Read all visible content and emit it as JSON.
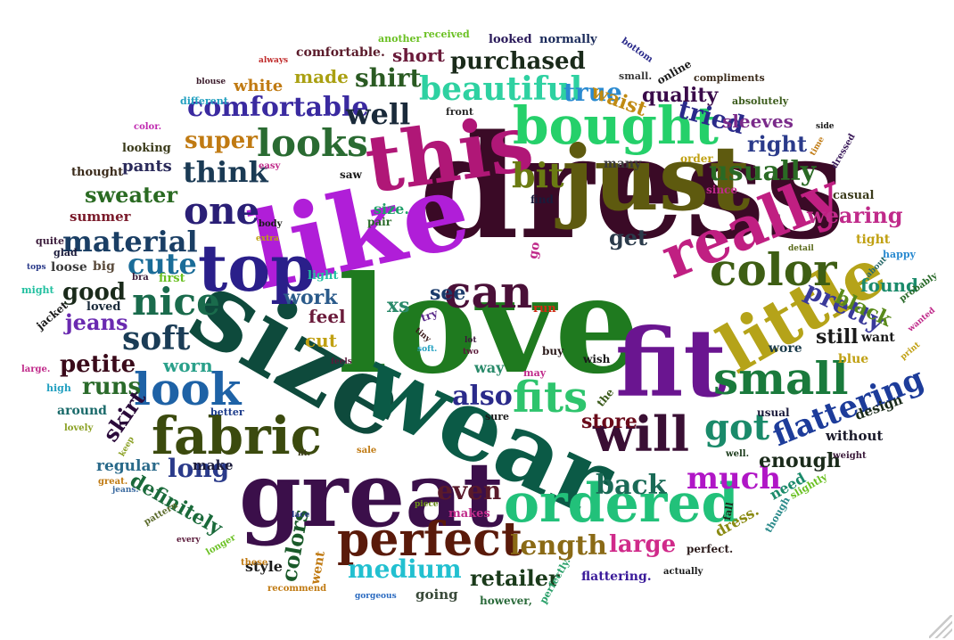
{
  "words": [
    {
      "text": "dress",
      "color": "#3a0a26",
      "rot": 0
    },
    {
      "text": "love",
      "color": "#1f7a1f",
      "rot": 0
    },
    {
      "text": "size",
      "color": "#0e4a3c",
      "rot": 30
    },
    {
      "text": "like",
      "color": "#b01ed8",
      "rot": -12
    },
    {
      "text": "wear",
      "color": "#0b5a46",
      "rot": 25
    },
    {
      "text": "great",
      "color": "#3b0f4a",
      "rot": 0
    },
    {
      "text": "just",
      "color": "#5e5a0f",
      "rot": 0
    },
    {
      "text": "fit",
      "color": "#6a1590",
      "rot": 0
    },
    {
      "text": "this",
      "color": "#b01777",
      "rot": -8
    },
    {
      "text": "top",
      "color": "#2a1f8a",
      "rot": 0
    },
    {
      "text": "little",
      "color": "#b5a319",
      "rot": -30
    },
    {
      "text": "really",
      "color": "#c01f82",
      "rot": -22
    },
    {
      "text": "ordered",
      "color": "#22c17a",
      "rot": 0
    },
    {
      "text": "bought",
      "color": "#25d06a",
      "rot": 0
    },
    {
      "text": "fabric",
      "color": "#3b4a0e",
      "rot": 0
    },
    {
      "text": "perfect",
      "color": "#5a1a0a",
      "rot": 0
    },
    {
      "text": "will",
      "color": "#3a0f34",
      "rot": 0
    },
    {
      "text": "color",
      "color": "#3e5e14",
      "rot": 0
    },
    {
      "text": "small",
      "color": "#1a7a3c",
      "rot": 0
    },
    {
      "text": "look",
      "color": "#1e62a6",
      "rot": 0
    },
    {
      "text": "fits",
      "color": "#2ec46d",
      "rot": 0
    },
    {
      "text": "can",
      "color": "#4a1038",
      "rot": 0
    },
    {
      "text": "nice",
      "color": "#1a6b4c",
      "rot": 0
    },
    {
      "text": "looks",
      "color": "#2a6b32",
      "rot": 0
    },
    {
      "text": "one",
      "color": "#2a1f76",
      "rot": 0
    },
    {
      "text": "bit",
      "color": "#6a7a12",
      "rot": 0
    },
    {
      "text": "got",
      "color": "#1a8a6a",
      "rot": 0
    },
    {
      "text": "beautiful",
      "color": "#2ed1a1",
      "rot": 0
    },
    {
      "text": "soft",
      "color": "#1a3c56",
      "rot": 0
    },
    {
      "text": "much",
      "color": "#b016c6",
      "rot": 0
    },
    {
      "text": "flattering",
      "color": "#1d3c9a",
      "rot": -22
    },
    {
      "text": "comfortable",
      "color": "#3a2aa0",
      "rot": 0
    },
    {
      "text": "material",
      "color": "#1a3e64",
      "rot": 0
    },
    {
      "text": "cute",
      "color": "#1a6c98",
      "rot": 0
    },
    {
      "text": "think",
      "color": "#1a3a54",
      "rot": 0
    },
    {
      "text": "well",
      "color": "#1a2a3a",
      "rot": 0
    },
    {
      "text": "usually",
      "color": "#2a6a24",
      "rot": 0
    },
    {
      "text": "length",
      "color": "#8a6a16",
      "rot": 0
    },
    {
      "text": "even",
      "color": "#5a1a2a",
      "rot": 0
    },
    {
      "text": "back",
      "color": "#1a6a56",
      "rot": 0
    },
    {
      "text": "also",
      "color": "#2a2a8a",
      "rot": 0
    },
    {
      "text": "pretty",
      "color": "#3a3a9a",
      "rot": 25
    },
    {
      "text": "purchased",
      "color": "#1a2a1a",
      "rot": 0
    },
    {
      "text": "shirt",
      "color": "#2a5a22",
      "rot": 0
    },
    {
      "text": "super",
      "color": "#c07a12",
      "rot": 0
    },
    {
      "text": "true",
      "color": "#2a8ad0",
      "rot": 0
    },
    {
      "text": "tried",
      "color": "#2a2a8a",
      "rot": 15
    },
    {
      "text": "good",
      "color": "#1a2a1a",
      "rot": 0
    },
    {
      "text": "jeans",
      "color": "#6a2ab0",
      "rot": 0
    },
    {
      "text": "petite",
      "color": "#3a0a1a",
      "rot": 0
    },
    {
      "text": "runs",
      "color": "#2a6a2a",
      "rot": 0
    },
    {
      "text": "sweater",
      "color": "#2a6a22",
      "rot": 0
    },
    {
      "text": "long",
      "color": "#2a3a8a",
      "rot": 0
    },
    {
      "text": "definitely",
      "color": "#1a6a3a",
      "rot": 30
    },
    {
      "text": "skirt",
      "color": "#2a0a3a",
      "rot": -55
    },
    {
      "text": "colors",
      "color": "#1a5a2a",
      "rot": -80
    },
    {
      "text": "medium",
      "color": "#22c0d0",
      "rot": 0
    },
    {
      "text": "retailer",
      "color": "#1a3a1a",
      "rot": 0
    },
    {
      "text": "large",
      "color": "#d02a8a",
      "rot": 0
    },
    {
      "text": "wearing",
      "color": "#c02a8a",
      "rot": 0
    },
    {
      "text": "black",
      "color": "#5a8a1a",
      "rot": 25
    },
    {
      "text": "still",
      "color": "#1a1a1a",
      "rot": 0
    },
    {
      "text": "get",
      "color": "#2a3a4a",
      "rot": 0
    },
    {
      "text": "right",
      "color": "#2a3a8a",
      "rot": 0
    },
    {
      "text": "quality",
      "color": "#3a0a4a",
      "rot": 0
    },
    {
      "text": "waist",
      "color": "#c08a12",
      "rot": 20
    },
    {
      "text": "sleeves",
      "color": "#7a2a8a",
      "rot": 0
    },
    {
      "text": "work",
      "color": "#2a5a8a",
      "rot": 0
    },
    {
      "text": "feel",
      "color": "#6a1a3a",
      "rot": 0
    },
    {
      "text": "cut",
      "color": "#c0a012",
      "rot": 0
    },
    {
      "text": "worn",
      "color": "#2aa08a",
      "rot": 0
    },
    {
      "text": "see",
      "color": "#1a3a6a",
      "rot": 0
    },
    {
      "text": "xs",
      "color": "#2a8a6a",
      "rot": 0
    },
    {
      "text": "store",
      "color": "#6a0a1a",
      "rot": 0
    },
    {
      "text": "enough",
      "color": "#1a2a1a",
      "rot": 0
    },
    {
      "text": "found",
      "color": "#1a8a6a",
      "rot": 0
    },
    {
      "text": "made",
      "color": "#aaa012",
      "rot": 0
    },
    {
      "text": "short",
      "color": "#6a1a3a",
      "rot": 0
    },
    {
      "text": "white",
      "color": "#c07a12",
      "rot": 0
    },
    {
      "text": "pants",
      "color": "#2a2a5a",
      "rot": 0
    },
    {
      "text": "summer",
      "color": "#7a1a2a",
      "rot": 0
    },
    {
      "text": "make",
      "color": "#1a1a3a",
      "rot": 0
    },
    {
      "text": "regular",
      "color": "#2a6a8a",
      "rot": 0
    },
    {
      "text": "style",
      "color": "#1a1a1a",
      "rot": 0
    },
    {
      "text": "went",
      "color": "#c07a12",
      "rot": -80
    },
    {
      "text": "going",
      "color": "#3a4a3a",
      "rot": 0
    },
    {
      "text": "way",
      "color": "#2a8a6a",
      "rot": 0
    },
    {
      "text": "design",
      "color": "#1a2a1a",
      "rot": -20
    },
    {
      "text": "without",
      "color": "#1a1a2a",
      "rot": 0
    },
    {
      "text": "dress.",
      "color": "#8a8a12",
      "rot": -30
    },
    {
      "text": "need",
      "color": "#1a8a6a",
      "rot": -30
    },
    {
      "text": "want",
      "color": "#1a1a1a",
      "rot": 0
    },
    {
      "text": "wore",
      "color": "#1a3a4a",
      "rot": 0
    },
    {
      "text": "blue",
      "color": "#c0a012",
      "rot": 0
    },
    {
      "text": "many",
      "color": "#3a3a3a",
      "rot": 0
    },
    {
      "text": "compliments",
      "color": "#3a2a1a",
      "rot": 0
    },
    {
      "text": "absolutely",
      "color": "#3a5a1a",
      "rot": 0
    },
    {
      "text": "comfortable.",
      "color": "#5a1a2a",
      "rot": 0
    },
    {
      "text": "looked",
      "color": "#2a1a5a",
      "rot": 0
    },
    {
      "text": "normally",
      "color": "#1a2a5a",
      "rot": 0
    },
    {
      "text": "another",
      "color": "#6ac022",
      "rot": 0
    },
    {
      "text": "received",
      "color": "#6ac022",
      "rot": 0
    },
    {
      "text": "looking",
      "color": "#3a3a1a",
      "rot": 0
    },
    {
      "text": "thought",
      "color": "#3a2a1a",
      "rot": 0
    },
    {
      "text": "glad",
      "color": "#1a1a3a",
      "rot": 0
    },
    {
      "text": "quite",
      "color": "#3a1a3a",
      "rot": 0
    },
    {
      "text": "loose",
      "color": "#3a3a3a",
      "rot": 0
    },
    {
      "text": "big",
      "color": "#5a4a3a",
      "rot": 0
    },
    {
      "text": "might",
      "color": "#22c0a0",
      "rot": 0
    },
    {
      "text": "jacket",
      "color": "#1a1a1a",
      "rot": -40
    },
    {
      "text": "loved",
      "color": "#1a2a3a",
      "rot": 0
    },
    {
      "text": "around",
      "color": "#1a6a6a",
      "rot": 0
    },
    {
      "text": "lovely",
      "color": "#8aa022",
      "rot": 0
    },
    {
      "text": "great.",
      "color": "#c07a12",
      "rot": 0
    },
    {
      "text": "jeans.",
      "color": "#3a6aa0",
      "rot": 0
    },
    {
      "text": "pattern",
      "color": "#5a6a2a",
      "rot": -30
    },
    {
      "text": "every",
      "color": "#5a1a3a",
      "rot": 0
    },
    {
      "text": "longer",
      "color": "#6ac022",
      "rot": -30
    },
    {
      "text": "these",
      "color": "#c07a12",
      "rot": 0
    },
    {
      "text": "recommend",
      "color": "#c07a12",
      "rot": 0
    },
    {
      "text": "gorgeous",
      "color": "#2a6ac0",
      "rot": 0
    },
    {
      "text": "however,",
      "color": "#2a6a3a",
      "rot": 0
    },
    {
      "text": "perfectly.",
      "color": "#2aa06a",
      "rot": -60
    },
    {
      "text": "flattering.",
      "color": "#3a1a9a",
      "rot": 0
    },
    {
      "text": "actually",
      "color": "#1a1a1a",
      "rot": 0
    },
    {
      "text": "perfect.",
      "color": "#2a1a1a",
      "rot": 0
    },
    {
      "text": "slightly",
      "color": "#6ac022",
      "rot": -30
    },
    {
      "text": "though",
      "color": "#2a8a8a",
      "rot": -60
    },
    {
      "text": "fall",
      "color": "#1a2a1a",
      "rot": -80
    },
    {
      "text": "usual",
      "color": "#1a1a3a",
      "rot": 0
    },
    {
      "text": "well.",
      "color": "#1a3a1a",
      "rot": 0
    },
    {
      "text": "weight",
      "color": "#3a1a3a",
      "rot": 0
    },
    {
      "text": "makes",
      "color": "#c02a8a",
      "rot": 0
    },
    {
      "text": "lace",
      "color": "#2a3a8a",
      "rot": 0
    },
    {
      "text": "sale",
      "color": "#c07a12",
      "rot": 0
    },
    {
      "text": "fit.",
      "color": "#3a3a1a",
      "rot": 0
    },
    {
      "text": "better",
      "color": "#1a3a8a",
      "rot": 0
    },
    {
      "text": "keep",
      "color": "#8aa022",
      "rot": -60
    },
    {
      "text": "high",
      "color": "#22a0c0",
      "rot": 0
    },
    {
      "text": "large.",
      "color": "#c02a8a",
      "rot": 0
    },
    {
      "text": "piece",
      "color": "#6a8a1a",
      "rot": 0
    },
    {
      "text": "sure",
      "color": "#1a1a1a",
      "rot": 0
    },
    {
      "text": "the",
      "color": "#3a5a1a",
      "rot": -50
    },
    {
      "text": "may",
      "color": "#c02a8a",
      "rot": 0
    },
    {
      "text": "buy",
      "color": "#2a1a1a",
      "rot": 0
    },
    {
      "text": "wish",
      "color": "#1a1a1a",
      "rot": 0
    },
    {
      "text": "run",
      "color": "#d02a12",
      "rot": 0
    },
    {
      "text": "try",
      "color": "#5a2a8a",
      "rot": -20
    },
    {
      "text": "go",
      "color": "#c02a8a",
      "rot": -80
    },
    {
      "text": "soft.",
      "color": "#22a0c0",
      "rot": 0
    },
    {
      "text": "lot",
      "color": "#3a1a3a",
      "rot": 0
    },
    {
      "text": "two",
      "color": "#5a1a3a",
      "rot": 0
    },
    {
      "text": "feels",
      "color": "#5a1a3a",
      "rot": 0
    },
    {
      "text": "tiny",
      "color": "#3a1a1a",
      "rot": 40
    },
    {
      "text": "light",
      "color": "#22c0a0",
      "rot": 0
    },
    {
      "text": "first",
      "color": "#6ac022",
      "rot": 0
    },
    {
      "text": "bra",
      "color": "#3a1a3a",
      "rot": 0
    },
    {
      "text": "tops",
      "color": "#2a3a8a",
      "rot": 0
    },
    {
      "text": "size.",
      "color": "#22a06a",
      "rot": 0
    },
    {
      "text": "pair",
      "color": "#2a6a2a",
      "rot": 0
    },
    {
      "text": "find",
      "color": "#1a1a3a",
      "rot": 0
    },
    {
      "text": "extra",
      "color": "#c0a012",
      "rot": 0
    },
    {
      "text": "body",
      "color": "#1a1a1a",
      "rot": 0
    },
    {
      "text": "easy",
      "color": "#c02a8a",
      "rot": 0
    },
    {
      "text": "saw",
      "color": "#1a1a1a",
      "rot": 0
    },
    {
      "text": "order",
      "color": "#c0a012",
      "rot": 0
    },
    {
      "text": "since",
      "color": "#c02a8a",
      "rot": 0
    },
    {
      "text": "casual",
      "color": "#3a3a1a",
      "rot": 0
    },
    {
      "text": "tight",
      "color": "#c0a012",
      "rot": 0
    },
    {
      "text": "detail",
      "color": "#5a6a1a",
      "rot": 0
    },
    {
      "text": "happy",
      "color": "#2a8ad0",
      "rot": 0
    },
    {
      "text": "about",
      "color": "#2a6a6a",
      "rot": -45
    },
    {
      "text": "probably",
      "color": "#2a6a2a",
      "rot": -35
    },
    {
      "text": "wanted",
      "color": "#c02a8a",
      "rot": -40
    },
    {
      "text": "print",
      "color": "#c0a012",
      "rot": -40
    },
    {
      "text": "dressed",
      "color": "#3a1a5a",
      "rot": -60
    },
    {
      "text": "time",
      "color": "#c07a12",
      "rot": -60
    },
    {
      "text": "side",
      "color": "#1a1a1a",
      "rot": 0
    },
    {
      "text": "online",
      "color": "#1a1a1a",
      "rot": -30
    },
    {
      "text": "small.",
      "color": "#3a3a3a",
      "rot": 0
    },
    {
      "text": "bottom",
      "color": "#2a2a8a",
      "rot": 35
    },
    {
      "text": "front",
      "color": "#2a2a2a",
      "rot": 0
    },
    {
      "text": "blouse",
      "color": "#3a1a2a",
      "rot": 0
    },
    {
      "text": "always",
      "color": "#c02a2a",
      "rot": 0
    },
    {
      "text": "different",
      "color": "#22a0c0",
      "rot": 0
    },
    {
      "text": "color.",
      "color": "#c02ab0",
      "rot": 0
    }
  ]
}
